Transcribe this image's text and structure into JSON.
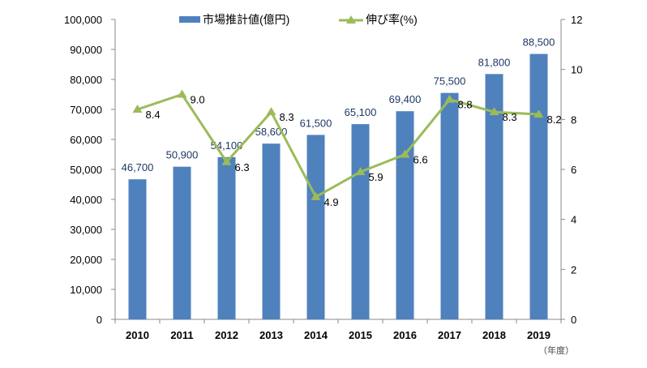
{
  "chart_data": {
    "type": "bar+line",
    "categories": [
      "2010",
      "2011",
      "2012",
      "2013",
      "2014",
      "2015",
      "2016",
      "2017",
      "2018",
      "2019"
    ],
    "series": [
      {
        "name": "市場推計値(億円)",
        "type": "bar",
        "axis": "left",
        "values": [
          46700,
          50900,
          54100,
          58600,
          61500,
          65100,
          69400,
          75500,
          81800,
          88500
        ],
        "labels": [
          "46,700",
          "50,900",
          "54,100",
          "58,600",
          "61,500",
          "65,100",
          "69,400",
          "75,500",
          "81,800",
          "88,500"
        ],
        "color": "#4F81BD"
      },
      {
        "name": "伸び率(%)",
        "type": "line",
        "axis": "right",
        "marker": "triangle",
        "values": [
          8.4,
          9.0,
          6.3,
          8.3,
          4.9,
          5.9,
          6.6,
          8.8,
          8.3,
          8.2
        ],
        "labels": [
          "8.4",
          "9.0",
          "6.3",
          "8.3",
          "4.9",
          "5.9",
          "6.6",
          "8.8",
          "8.3",
          "8.2"
        ],
        "color": "#9BBB59"
      }
    ],
    "left_axis": {
      "ylim": [
        0,
        100000
      ],
      "ticks": [
        "0",
        "10,000",
        "20,000",
        "30,000",
        "40,000",
        "50,000",
        "60,000",
        "70,000",
        "80,000",
        "90,000",
        "100,000"
      ]
    },
    "right_axis": {
      "ylim": [
        0,
        12
      ],
      "ticks": [
        "0",
        "2",
        "4",
        "6",
        "8",
        "10",
        "12"
      ]
    },
    "xlabel": "（年度）",
    "legend": "top",
    "grid": false
  }
}
